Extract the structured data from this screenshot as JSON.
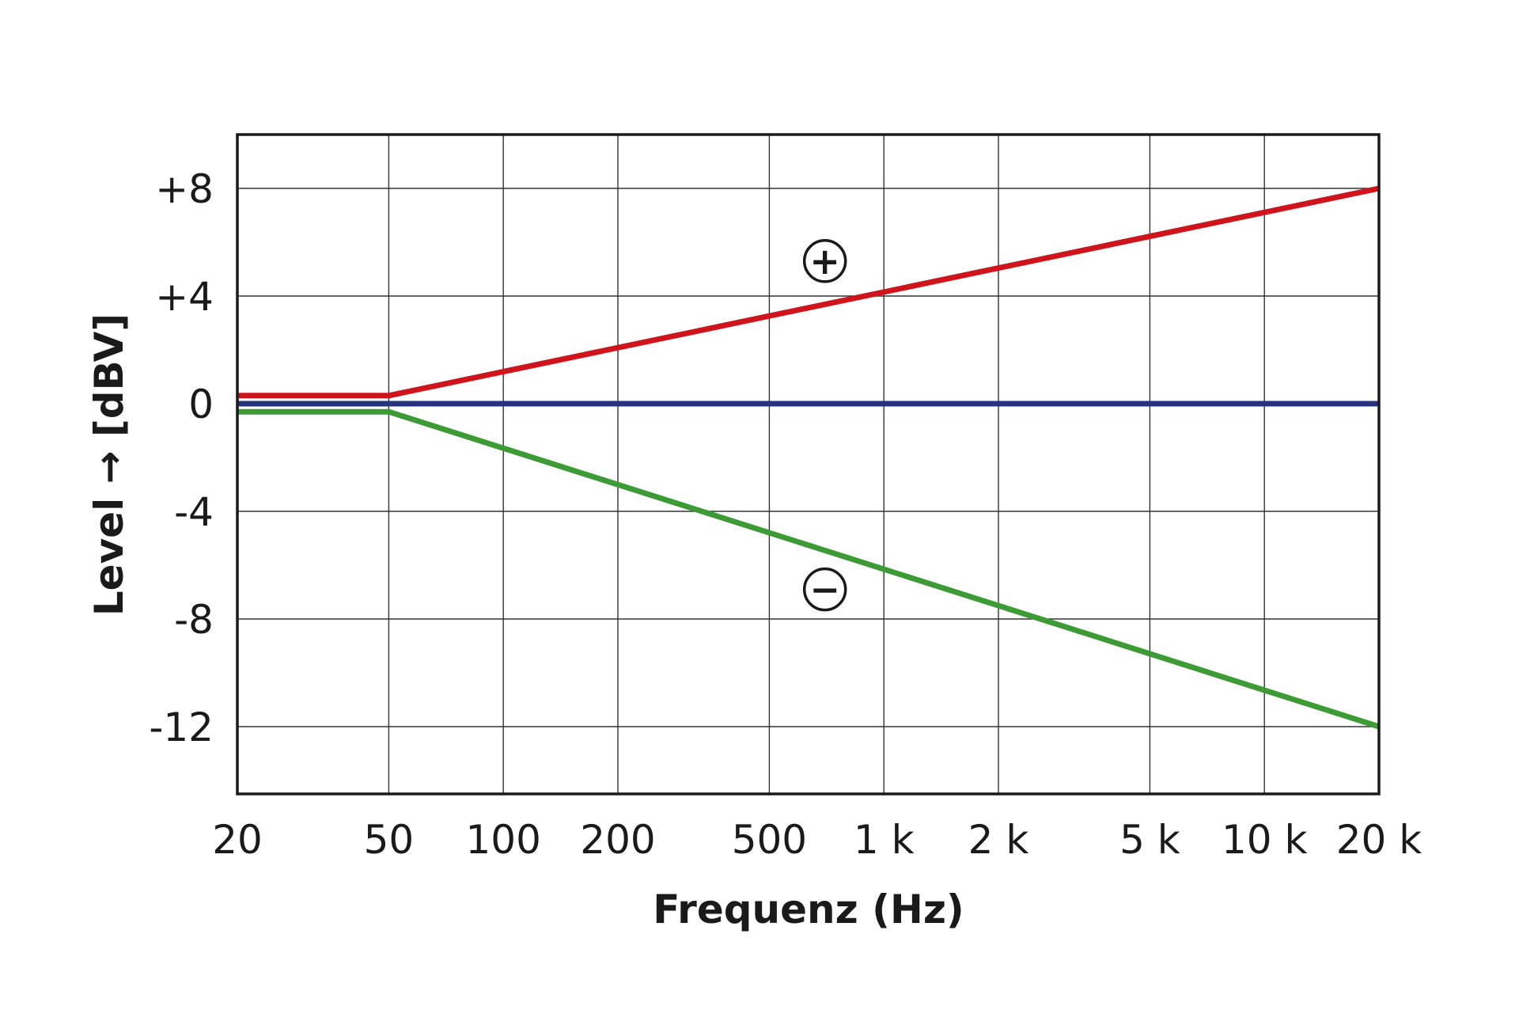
{
  "chart_data": {
    "type": "line",
    "xlabel": "Frequenz (Hz)",
    "ylabel": "Level → [dBV]",
    "x_scale": "log",
    "xlim": [
      20,
      20000
    ],
    "ylim": [
      -14.5,
      10
    ],
    "grid": true,
    "x_ticks": [
      {
        "value": 20,
        "label": "20"
      },
      {
        "value": 50,
        "label": "50"
      },
      {
        "value": 100,
        "label": "100"
      },
      {
        "value": 200,
        "label": "200"
      },
      {
        "value": 500,
        "label": "500"
      },
      {
        "value": 1000,
        "label": "1 k"
      },
      {
        "value": 2000,
        "label": "2 k"
      },
      {
        "value": 5000,
        "label": "5 k"
      },
      {
        "value": 10000,
        "label": "10 k"
      },
      {
        "value": 20000,
        "label": "20 k"
      }
    ],
    "y_ticks": [
      {
        "value": 8,
        "label": "+8"
      },
      {
        "value": 4,
        "label": "+4"
      },
      {
        "value": 0,
        "label": "0"
      },
      {
        "value": -4,
        "label": "-4"
      },
      {
        "value": -8,
        "label": "-8"
      },
      {
        "value": -12,
        "label": "-12"
      }
    ],
    "series": [
      {
        "color": "#d0141c",
        "x": [
          20,
          50,
          20000
        ],
        "y": [
          0.3,
          0.3,
          8
        ]
      },
      {
        "color": "#25337f",
        "x": [
          20,
          20000
        ],
        "y": [
          0,
          0
        ]
      },
      {
        "color": "#3d9b35",
        "x": [
          20,
          50,
          20000
        ],
        "y": [
          -0.3,
          -0.3,
          -12
        ]
      }
    ],
    "annotations": [
      {
        "symbol": "+",
        "x": 700,
        "y": 5.3
      },
      {
        "symbol": "−",
        "x": 700,
        "y": -6.9
      }
    ]
  }
}
